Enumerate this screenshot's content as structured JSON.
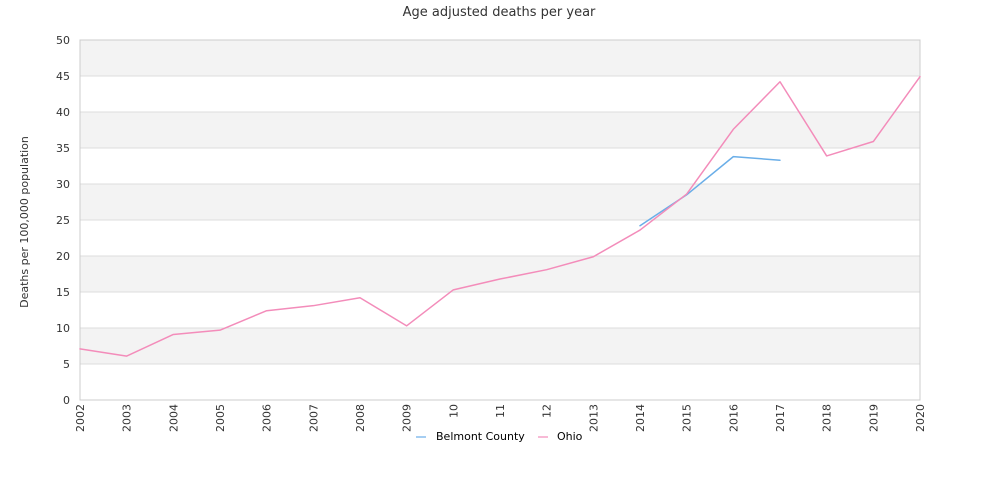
{
  "chart_data": {
    "type": "line",
    "title": "Age adjusted deaths per year",
    "xlabel": "",
    "ylabel": "Deaths per 100,000 population",
    "x": [
      "2002",
      "2003",
      "2004",
      "2005",
      "2006",
      "2007",
      "2008",
      "2009",
      "2010",
      "2011",
      "2012",
      "2013",
      "2014",
      "2015",
      "2016",
      "2017",
      "2018",
      "2019",
      "2020"
    ],
    "x_tick_labels": [
      "2002",
      "2003",
      "2004",
      "2005",
      "2006",
      "2007",
      "2008",
      "2009",
      "10",
      "11",
      "12",
      "2013",
      "2014",
      "2015",
      "2016",
      "2017",
      "2018",
      "2019",
      "2020"
    ],
    "ylim": [
      0,
      50
    ],
    "y_ticks": [
      0,
      5,
      10,
      15,
      20,
      25,
      30,
      35,
      40,
      45,
      50
    ],
    "grid": "alternating horizontal bands",
    "legend_position": "bottom",
    "series": [
      {
        "name": "Belmont County",
        "color": "#6aaee8",
        "values": [
          null,
          null,
          null,
          null,
          null,
          null,
          null,
          null,
          null,
          null,
          null,
          null,
          24.2,
          28.5,
          33.8,
          33.3,
          null,
          null,
          null
        ]
      },
      {
        "name": "Ohio",
        "color": "#f38cba",
        "values": [
          7.1,
          6.1,
          9.1,
          9.7,
          12.4,
          13.1,
          14.2,
          10.3,
          15.3,
          16.8,
          18.1,
          19.9,
          23.6,
          28.6,
          37.6,
          44.2,
          33.9,
          35.9,
          44.9
        ]
      }
    ],
    "colors": {
      "band_fill": "#f3f3f3",
      "grid_line": "#dddddd",
      "axis_line": "#cccccc"
    }
  }
}
